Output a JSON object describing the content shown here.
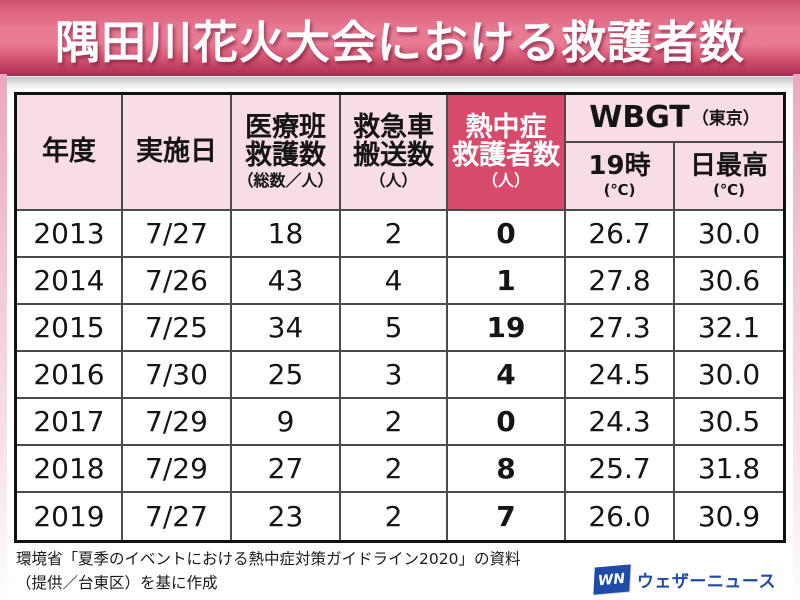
{
  "title": "隅田川花火大会における救護者数",
  "colors": {
    "banner_pink": "#e87a93",
    "banner_dark_edge": "#a52c4f",
    "header_pink": "#f8dde4",
    "highlight_magenta": "#d84a6c",
    "table_border": "#111111",
    "logo_blue": "#1d4ba5"
  },
  "table": {
    "header": {
      "year": "年度",
      "date": "実施日",
      "medical_l1": "医療班",
      "medical_l2": "救護数",
      "medical_unit": "（総数／人）",
      "ambulance_l1": "救急車",
      "ambulance_l2": "搬送数",
      "ambulance_unit": "（人）",
      "heatstroke_l1": "熱中症",
      "heatstroke_l2": "救護者数",
      "heatstroke_unit": "（人）",
      "wbgt": "WBGT",
      "wbgt_region": "（東京）",
      "wbgt_sub1": "19時",
      "wbgt_sub1_unit": "(℃)",
      "wbgt_sub2": "日最高",
      "wbgt_sub2_unit": "(℃)"
    },
    "rows": [
      [
        "2013",
        "7/27",
        "18",
        "2",
        "0",
        "26.7",
        "30.0"
      ],
      [
        "2014",
        "7/26",
        "43",
        "4",
        "1",
        "27.8",
        "30.6"
      ],
      [
        "2015",
        "7/25",
        "34",
        "5",
        "19",
        "27.3",
        "32.1"
      ],
      [
        "2016",
        "7/30",
        "25",
        "3",
        "4",
        "24.5",
        "30.0"
      ],
      [
        "2017",
        "7/29",
        "9",
        "2",
        "0",
        "24.3",
        "30.5"
      ],
      [
        "2018",
        "7/29",
        "27",
        "2",
        "8",
        "25.7",
        "31.8"
      ],
      [
        "2019",
        "7/27",
        "23",
        "2",
        "7",
        "26.0",
        "30.9"
      ]
    ]
  },
  "footer": {
    "source_line1": "環境省「夏季のイベントにおける熱中症対策ガイドライン2020」の資料",
    "source_line2": "（提供／台東区）を基に作成",
    "logo_mark": "WN",
    "logo_text": "ウェザーニュース"
  },
  "chart_data": {
    "type": "table",
    "title": "隅田川花火大会における救護者数",
    "columns": [
      "年度",
      "実施日",
      "医療班救護数（総数／人）",
      "救急車搬送数（人）",
      "熱中症救護者数（人）",
      "WBGT（東京）19時（℃）",
      "WBGT（東京）日最高（℃）"
    ],
    "rows": [
      [
        "2013",
        "7/27",
        18,
        2,
        0,
        26.7,
        30.0
      ],
      [
        "2014",
        "7/26",
        43,
        4,
        1,
        27.8,
        30.6
      ],
      [
        "2015",
        "7/25",
        34,
        5,
        19,
        27.3,
        32.1
      ],
      [
        "2016",
        "7/30",
        25,
        3,
        4,
        24.5,
        30.0
      ],
      [
        "2017",
        "7/29",
        9,
        2,
        0,
        24.3,
        30.5
      ],
      [
        "2018",
        "7/29",
        27,
        2,
        8,
        25.7,
        31.8
      ],
      [
        "2019",
        "7/27",
        23,
        2,
        7,
        26.0,
        30.9
      ]
    ],
    "highlighted_column": "熱中症救護者数（人）",
    "source": "環境省「夏季のイベントにおける熱中症対策ガイドライン2020」の資料（提供／台東区）を基に作成"
  }
}
